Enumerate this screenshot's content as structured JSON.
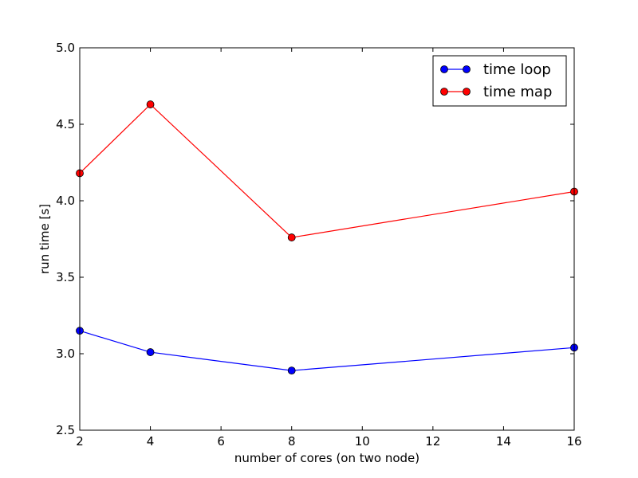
{
  "chart_data": {
    "type": "line",
    "title": "",
    "xlabel": "number of cores (on two node)",
    "ylabel": "run time [s]",
    "xlim": [
      2,
      16
    ],
    "ylim": [
      2.5,
      5.0
    ],
    "xticks": [
      2,
      4,
      6,
      8,
      10,
      12,
      14,
      16
    ],
    "yticks": [
      2.5,
      3.0,
      3.5,
      4.0,
      4.5,
      5.0
    ],
    "xtick_labels": [
      "2",
      "4",
      "6",
      "8",
      "10",
      "12",
      "14",
      "16"
    ],
    "ytick_labels": [
      "2.5",
      "3.0",
      "3.5",
      "4.0",
      "4.5",
      "5.0"
    ],
    "grid": false,
    "legend_position": "top-right",
    "series": [
      {
        "name": "time loop",
        "color": "#0000ff",
        "x": [
          2,
          4,
          8,
          16
        ],
        "y": [
          3.15,
          3.01,
          2.89,
          3.04
        ]
      },
      {
        "name": "time map",
        "color": "#ff0000",
        "x": [
          2,
          4,
          8,
          16
        ],
        "y": [
          4.18,
          4.63,
          3.76,
          4.06
        ]
      }
    ]
  }
}
